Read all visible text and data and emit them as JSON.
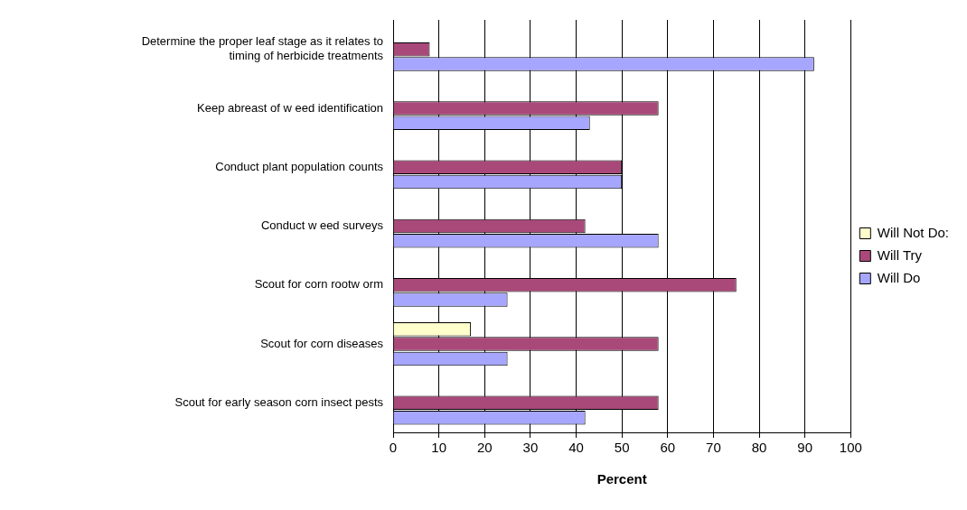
{
  "chart_data": {
    "type": "bar",
    "orientation": "horizontal",
    "xlabel": "Percent",
    "categories": [
      "Determine the proper leaf stage as it relates to timing of herbicide treatments",
      "Keep abreast of w eed identification",
      "Conduct plant population counts",
      "Conduct w eed surveys",
      "Scout for corn rootw orm",
      "Scout for corn diseases",
      "Scout for early season corn insect pests"
    ],
    "series": [
      {
        "name": "Will Not Do:",
        "color": "#ffffcc",
        "values": [
          0,
          0,
          0,
          0,
          0,
          17,
          0
        ]
      },
      {
        "name": "Will Try",
        "color": "#a9497a",
        "values": [
          8,
          58,
          50,
          42,
          75,
          58,
          58
        ]
      },
      {
        "name": "Will Do",
        "color": "#a6a6ff",
        "values": [
          92,
          43,
          50,
          58,
          25,
          25,
          42
        ]
      }
    ],
    "xlim": [
      0,
      100
    ],
    "xticks": [
      0,
      10,
      20,
      30,
      40,
      50,
      60,
      70,
      80,
      90,
      100
    ],
    "grid": "x",
    "legend": "right"
  }
}
